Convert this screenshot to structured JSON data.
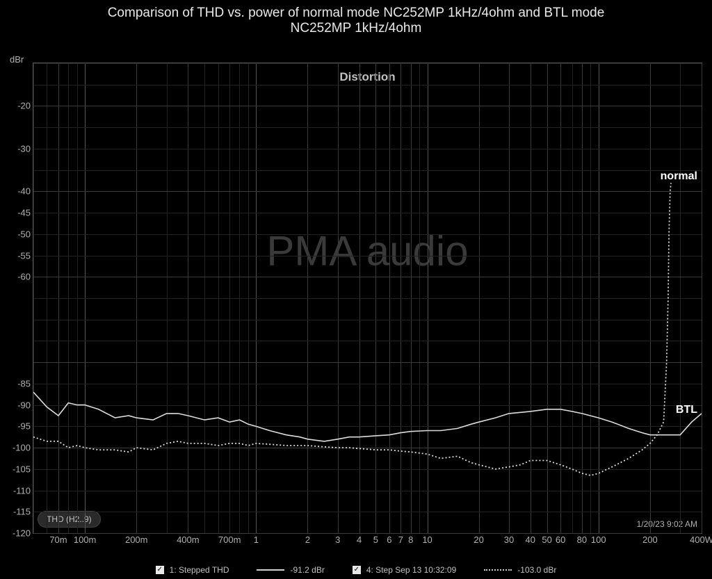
{
  "title_line1": "Comparison of THD vs. power of normal mode NC252MP 1kHz/4ohm          and BTL mode",
  "title_line2": "NC252MP 1kHz/4ohm",
  "subtitle": "Distortion",
  "watermark": "PMA audio",
  "y_unit": "dBr",
  "badge_text": "THD (H2..9)",
  "timestamp": "1/20/23 9:02 AM",
  "annotations": {
    "normal": "normal",
    "btl": "BTL"
  },
  "colors": {
    "background": "#000000",
    "text": "#b0b0b0",
    "title_text": "#e8e8e8",
    "grid_minor": "#222222",
    "grid_major": "#3a3a3a",
    "grid_bright": "#555555",
    "series": "#d8d8d8",
    "watermark": "#3a3a3a"
  },
  "chart": {
    "type": "line",
    "x_scale": "log",
    "x_min": 0.05,
    "x_max": 400,
    "x_unit": "W",
    "x_ticks_labeled": [
      {
        "v": 0.07,
        "label": "70m"
      },
      {
        "v": 0.1,
        "label": "100m"
      },
      {
        "v": 0.2,
        "label": "200m"
      },
      {
        "v": 0.4,
        "label": "400m"
      },
      {
        "v": 0.7,
        "label": "700m"
      },
      {
        "v": 1,
        "label": "1"
      },
      {
        "v": 2,
        "label": "2"
      },
      {
        "v": 3,
        "label": "3"
      },
      {
        "v": 4,
        "label": "4"
      },
      {
        "v": 5,
        "label": "5"
      },
      {
        "v": 6,
        "label": "6"
      },
      {
        "v": 7,
        "label": "7"
      },
      {
        "v": 8,
        "label": "8"
      },
      {
        "v": 10,
        "label": "10"
      },
      {
        "v": 20,
        "label": "20"
      },
      {
        "v": 30,
        "label": "30"
      },
      {
        "v": 40,
        "label": "40"
      },
      {
        "v": 50,
        "label": "50"
      },
      {
        "v": 60,
        "label": "60"
      },
      {
        "v": 80,
        "label": "80"
      },
      {
        "v": 100,
        "label": "100"
      },
      {
        "v": 200,
        "label": "200"
      },
      {
        "v": 400,
        "label": "400W"
      }
    ],
    "x_decade_starts": [
      0.1,
      1,
      10,
      100
    ],
    "y_min": -120,
    "y_max": -10,
    "y_tick_step": 5,
    "y_labels": [
      -20,
      -30,
      -40,
      -45,
      -50,
      -55,
      -60,
      -85,
      -90,
      -95,
      -100,
      -105,
      -110,
      -115,
      -120
    ],
    "y_major": [
      -20,
      -40,
      -60,
      -80,
      -100,
      -120
    ],
    "series": [
      {
        "name": "BTL",
        "style": "solid",
        "width": 1.6,
        "color": "#dcdcdc",
        "points": [
          [
            0.05,
            -87
          ],
          [
            0.06,
            -90.5
          ],
          [
            0.07,
            -92.5
          ],
          [
            0.08,
            -89.5
          ],
          [
            0.09,
            -90
          ],
          [
            0.1,
            -90
          ],
          [
            0.12,
            -91
          ],
          [
            0.15,
            -93
          ],
          [
            0.18,
            -92.5
          ],
          [
            0.2,
            -93
          ],
          [
            0.25,
            -93.5
          ],
          [
            0.3,
            -92
          ],
          [
            0.35,
            -92
          ],
          [
            0.4,
            -92.5
          ],
          [
            0.5,
            -93.5
          ],
          [
            0.6,
            -93
          ],
          [
            0.7,
            -94
          ],
          [
            0.8,
            -93.5
          ],
          [
            0.9,
            -94.5
          ],
          [
            1.0,
            -95
          ],
          [
            1.2,
            -96
          ],
          [
            1.5,
            -97
          ],
          [
            1.8,
            -97.5
          ],
          [
            2.0,
            -98
          ],
          [
            2.5,
            -98.5
          ],
          [
            3.0,
            -98
          ],
          [
            3.5,
            -97.5
          ],
          [
            4.0,
            -97.5
          ],
          [
            5.0,
            -97.2
          ],
          [
            6.0,
            -97
          ],
          [
            7.0,
            -96.5
          ],
          [
            8.0,
            -96.2
          ],
          [
            10,
            -96
          ],
          [
            12,
            -96
          ],
          [
            15,
            -95.5
          ],
          [
            18,
            -94.5
          ],
          [
            20,
            -94
          ],
          [
            25,
            -93
          ],
          [
            30,
            -92
          ],
          [
            40,
            -91.5
          ],
          [
            50,
            -91
          ],
          [
            60,
            -91
          ],
          [
            70,
            -91.5
          ],
          [
            80,
            -92
          ],
          [
            100,
            -93
          ],
          [
            120,
            -94
          ],
          [
            150,
            -95.5
          ],
          [
            180,
            -96.5
          ],
          [
            200,
            -97
          ],
          [
            250,
            -97
          ],
          [
            300,
            -97
          ],
          [
            350,
            -94
          ],
          [
            400,
            -92
          ]
        ]
      },
      {
        "name": "normal",
        "style": "dotted",
        "width": 1.8,
        "color": "#dcdcdc",
        "points": [
          [
            0.05,
            -97.5
          ],
          [
            0.06,
            -98.5
          ],
          [
            0.07,
            -98.5
          ],
          [
            0.08,
            -100
          ],
          [
            0.09,
            -99.5
          ],
          [
            0.1,
            -100
          ],
          [
            0.12,
            -100.5
          ],
          [
            0.15,
            -100.5
          ],
          [
            0.18,
            -101
          ],
          [
            0.2,
            -100
          ],
          [
            0.25,
            -100.5
          ],
          [
            0.3,
            -99
          ],
          [
            0.35,
            -98.5
          ],
          [
            0.4,
            -99
          ],
          [
            0.5,
            -99
          ],
          [
            0.6,
            -99.5
          ],
          [
            0.7,
            -99
          ],
          [
            0.8,
            -99
          ],
          [
            0.9,
            -99.5
          ],
          [
            1.0,
            -99
          ],
          [
            1.2,
            -99.2
          ],
          [
            1.5,
            -99.5
          ],
          [
            1.8,
            -99.5
          ],
          [
            2.0,
            -99.5
          ],
          [
            2.5,
            -99.8
          ],
          [
            3.0,
            -100
          ],
          [
            3.5,
            -100
          ],
          [
            4.0,
            -100.2
          ],
          [
            5.0,
            -100.5
          ],
          [
            6.0,
            -100.5
          ],
          [
            7.0,
            -100.8
          ],
          [
            8.0,
            -101
          ],
          [
            10,
            -101.5
          ],
          [
            12,
            -102.5
          ],
          [
            15,
            -102
          ],
          [
            18,
            -103.5
          ],
          [
            20,
            -104
          ],
          [
            25,
            -105
          ],
          [
            30,
            -104.5
          ],
          [
            35,
            -104
          ],
          [
            40,
            -103
          ],
          [
            50,
            -103
          ],
          [
            60,
            -104
          ],
          [
            70,
            -105
          ],
          [
            80,
            -106
          ],
          [
            90,
            -106.5
          ],
          [
            100,
            -106
          ],
          [
            120,
            -104.5
          ],
          [
            150,
            -102.5
          ],
          [
            180,
            -100.5
          ],
          [
            200,
            -99
          ],
          [
            220,
            -97
          ],
          [
            240,
            -94
          ],
          [
            250,
            -80
          ],
          [
            255,
            -65
          ],
          [
            258,
            -50
          ],
          [
            262,
            -40
          ],
          [
            265,
            -38
          ]
        ]
      }
    ]
  },
  "legend": {
    "items": [
      {
        "checked": true,
        "label": "1: Stepped THD",
        "value": "-91.2 dBr",
        "style": "solid"
      },
      {
        "checked": true,
        "label": "4: Step Sep 13 10:32:09",
        "value": "-103.0 dBr",
        "style": "dotted"
      }
    ]
  }
}
